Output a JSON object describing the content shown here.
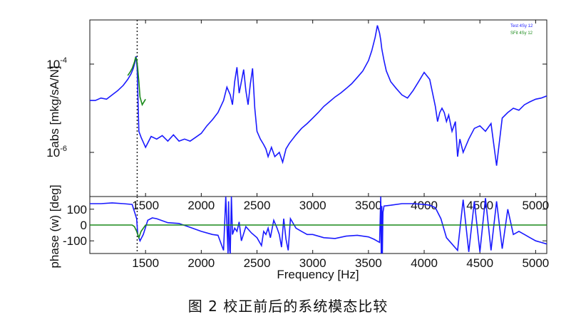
{
  "chart_data": [
    {
      "type": "line",
      "panel": "magnitude",
      "ylabel": "abs [mkg/sA/N]",
      "yscale": "log",
      "ylim": [
        1e-07,
        0.001
      ],
      "xlim": [
        1000,
        5100
      ],
      "y_ticks": [
        {
          "value": 0.0001,
          "base": "10",
          "exp": "-4"
        },
        {
          "value": 1e-06,
          "base": "10",
          "exp": "-6"
        }
      ],
      "x_ticks": [
        1500,
        2000,
        2500,
        3000,
        3500,
        4000,
        4500,
        5000
      ],
      "legend": {
        "position": "top-right",
        "entries": [
          "Test 4Sy 12",
          "SFit 4Sy 12"
        ]
      },
      "series": [
        {
          "name": "Test 4Sy 12",
          "color": "#1a1aff",
          "x": [
            1000,
            1050,
            1100,
            1150,
            1200,
            1250,
            1300,
            1340,
            1370,
            1390,
            1405,
            1415,
            1425,
            1440,
            1460,
            1500,
            1550,
            1600,
            1650,
            1700,
            1750,
            1800,
            1850,
            1900,
            1950,
            2000,
            2050,
            2100,
            2150,
            2200,
            2230,
            2260,
            2280,
            2300,
            2320,
            2340,
            2360,
            2380,
            2400,
            2420,
            2440,
            2460,
            2480,
            2500,
            2530,
            2560,
            2580,
            2600,
            2630,
            2660,
            2700,
            2730,
            2760,
            2790,
            2820,
            2850,
            2900,
            2950,
            3000,
            3050,
            3100,
            3150,
            3200,
            3250,
            3300,
            3350,
            3400,
            3450,
            3500,
            3530,
            3560,
            3580,
            3600,
            3610,
            3620,
            3640,
            3660,
            3700,
            3750,
            3800,
            3850,
            3900,
            3950,
            4000,
            4050,
            4100,
            4120,
            4140,
            4160,
            4180,
            4200,
            4220,
            4250,
            4280,
            4300,
            4320,
            4350,
            4400,
            4450,
            4500,
            4550,
            4600,
            4650,
            4700,
            4750,
            4800,
            4850,
            4900,
            4950,
            5000,
            5050,
            5100
          ],
          "y": [
            1.5e-05,
            1.5e-05,
            1.7e-05,
            1.6e-05,
            2e-05,
            2.5e-05,
            3.3e-05,
            4.5e-05,
            6e-05,
            8e-05,
            0.00011,
            0.00015,
            8e-05,
            3e-06,
            2.2e-06,
            1.3e-06,
            2.3e-06,
            2e-06,
            2.4e-06,
            1.8e-06,
            2.5e-06,
            1.8e-06,
            2e-06,
            1.8e-06,
            2.2e-06,
            2.7e-06,
            4e-06,
            5.5e-06,
            8e-06,
            1.5e-05,
            3e-05,
            2e-05,
            1.2e-05,
            4e-05,
            8.5e-05,
            2.2e-05,
            4e-05,
            7.5e-05,
            2.5e-05,
            1.2e-05,
            3.5e-05,
            8e-05,
            1e-05,
            3e-06,
            2e-06,
            1.5e-06,
            1.2e-06,
            8e-07,
            1.3e-06,
            8e-07,
            1e-06,
            6e-07,
            1.2e-06,
            1.6e-06,
            2e-06,
            2.5e-06,
            3.5e-06,
            4.5e-06,
            6e-06,
            8e-06,
            1.1e-05,
            1.4e-05,
            1.8e-05,
            2.2e-05,
            2.8e-05,
            3.6e-05,
            5e-05,
            7e-05,
            0.00012,
            0.0002,
            0.0004,
            0.00075,
            0.0005,
            0.00035,
            0.00022,
            0.00012,
            7e-05,
            4e-05,
            2.8e-05,
            2e-05,
            1.7e-05,
            2.5e-05,
            4e-05,
            6.5e-05,
            4.5e-05,
            1.1e-05,
            5e-06,
            8e-06,
            1e-05,
            8e-06,
            5e-06,
            7e-06,
            3e-06,
            5e-06,
            8e-07,
            2e-06,
            1e-06,
            2e-06,
            3.5e-06,
            4e-06,
            3e-06,
            4.5e-06,
            5e-07,
            6e-06,
            8e-06,
            1e-05,
            9e-06,
            1.2e-05,
            1.4e-05,
            1.6e-05,
            1.7e-05,
            1.9e-05
          ]
        },
        {
          "name": "SFit 4Sy 12",
          "color": "#1a8a1a",
          "x": [
            1340,
            1360,
            1380,
            1400,
            1410,
            1420,
            1430,
            1440,
            1450,
            1470,
            1500
          ],
          "y": [
            5.5e-05,
            6.5e-05,
            8e-05,
            0.00011,
            0.00014,
            0.00013,
            8e-05,
            4e-05,
            1.8e-05,
            1.2e-05,
            1.6e-05
          ]
        }
      ]
    },
    {
      "type": "line",
      "panel": "phase",
      "ylabel": "phase (w) [deg]",
      "xlabel": "Frequency [Hz]",
      "ylim": [
        -180,
        180
      ],
      "xlim": [
        1000,
        5100
      ],
      "y_ticks": [
        100,
        0,
        -100
      ],
      "x_ticks": [
        1500,
        2000,
        2500,
        3000,
        3500,
        4000,
        4500,
        5000
      ],
      "series": [
        {
          "name": "Test 4Sy 12",
          "color": "#1a1aff",
          "x": [
            1000,
            1100,
            1200,
            1300,
            1380,
            1420,
            1430,
            1450,
            1480,
            1520,
            1560,
            1600,
            1700,
            1800,
            1900,
            2000,
            2100,
            2150,
            2200,
            2220,
            2240,
            2245,
            2255,
            2260,
            2270,
            2280,
            2300,
            2320,
            2340,
            2360,
            2400,
            2450,
            2500,
            2540,
            2560,
            2580,
            2600,
            2620,
            2650,
            2680,
            2700,
            2720,
            2740,
            2760,
            2780,
            2800,
            2850,
            2900,
            2950,
            3000,
            3100,
            3200,
            3300,
            3400,
            3500,
            3550,
            3600,
            3610,
            3615,
            3620,
            3625,
            3630,
            3640,
            3700,
            3800,
            3900,
            4000,
            4050,
            4100,
            4150,
            4200,
            4250,
            4300,
            4350,
            4400,
            4450,
            4500,
            4550,
            4600,
            4650,
            4700,
            4750,
            4800,
            4850,
            4900,
            4950,
            5000,
            5050,
            5100
          ],
          "y": [
            135,
            135,
            140,
            135,
            130,
            40,
            -60,
            -100,
            -60,
            30,
            45,
            40,
            15,
            10,
            -15,
            -40,
            -60,
            -65,
            -160,
            180,
            -180,
            150,
            -160,
            -180,
            180,
            -60,
            -20,
            -40,
            20,
            -100,
            -10,
            -50,
            -80,
            -130,
            -40,
            -60,
            -20,
            -80,
            30,
            -20,
            -60,
            -140,
            40,
            -90,
            -160,
            40,
            -20,
            -40,
            -60,
            -60,
            -80,
            -85,
            -70,
            -65,
            -75,
            -90,
            -110,
            180,
            -180,
            120,
            -180,
            80,
            120,
            125,
            135,
            135,
            130,
            125,
            110,
            40,
            -80,
            -120,
            -160,
            160,
            -170,
            150,
            -170,
            170,
            -160,
            150,
            -150,
            100,
            -60,
            -40,
            -60,
            -80,
            -100,
            -110,
            -120
          ]
        },
        {
          "name": "SFit 4Sy 12",
          "color": "#1a8a1a",
          "x": [
            1000,
            1380,
            1400,
            1420,
            1440,
            1460,
            1500,
            5100
          ],
          "y": [
            0,
            0,
            -10,
            -40,
            -80,
            -40,
            0,
            0
          ]
        }
      ]
    }
  ],
  "marker_x": 1425,
  "caption": "图 2  校正前后的系统模态比较"
}
